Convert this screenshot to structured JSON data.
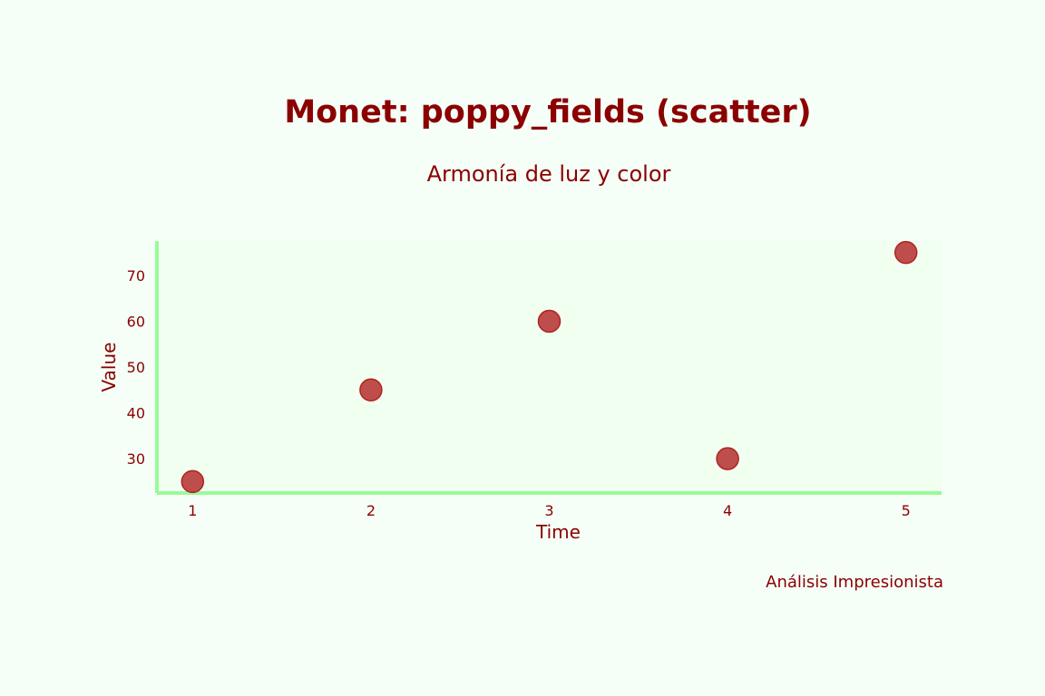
{
  "chart_data": {
    "type": "scatter",
    "title": "Monet: poppy_fields (scatter)",
    "subtitle": "Armonía de luz y color",
    "footer": "Análisis Impresionista",
    "xlabel": "Time",
    "ylabel": "Value",
    "x": [
      1,
      2,
      3,
      4,
      5
    ],
    "y": [
      25,
      45,
      60,
      30,
      75
    ],
    "x_ticks": [
      1,
      2,
      3,
      4,
      5
    ],
    "y_ticks": [
      30,
      40,
      50,
      60,
      70
    ],
    "xlim": [
      0.8,
      5.2
    ],
    "ylim": [
      22.5,
      77.5
    ],
    "grid": false,
    "colors": {
      "marker": "#b22222",
      "axis": "#98fb98",
      "plot_background": "#f0fff0",
      "text": "#8b0000",
      "page_background": "#f5fff7"
    }
  }
}
